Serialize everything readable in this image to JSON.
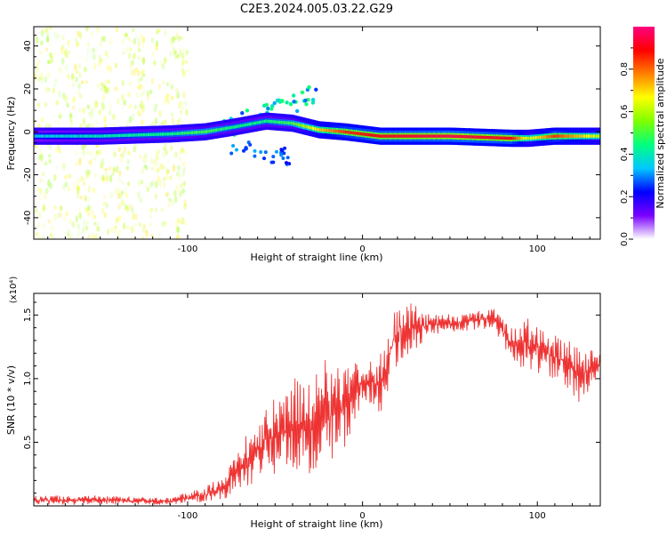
{
  "title": "C2E3.2024.005.03.22.G29",
  "chart_data": [
    {
      "type": "heatmap",
      "xlabel": "Height of straight line (km)",
      "ylabel": "Frequency (Hz)",
      "xlim": [
        -188,
        136
      ],
      "ylim": [
        -50,
        49
      ],
      "x_ticks": [
        -100,
        0,
        100
      ],
      "y_ticks": [
        -40,
        -20,
        0,
        20,
        40
      ],
      "colorbar": {
        "label": "Normalized spectral amplitude",
        "range": [
          0.0,
          1.0
        ],
        "ticks": [
          0.0,
          0.2,
          0.4,
          0.6,
          0.8
        ],
        "colors": [
          "#ffffff",
          "#7a00ff",
          "#0000ff",
          "#00c8ff",
          "#00ff80",
          "#80ff00",
          "#ffff00",
          "#ff8000",
          "#ff0000",
          "#ff0080"
        ]
      },
      "ridge": [
        {
          "height": -188,
          "frequency": -2,
          "amplitude": 0.35
        },
        {
          "height": -150,
          "frequency": -2,
          "amplitude": 0.4
        },
        {
          "height": -110,
          "frequency": -1,
          "amplitude": 0.45
        },
        {
          "height": -90,
          "frequency": 0,
          "amplitude": 0.5
        },
        {
          "height": -75,
          "frequency": 2,
          "amplitude": 0.45
        },
        {
          "height": -55,
          "frequency": 5,
          "amplitude": 0.45
        },
        {
          "height": -40,
          "frequency": 4,
          "amplitude": 0.5
        },
        {
          "height": -25,
          "frequency": 1,
          "amplitude": 0.7
        },
        {
          "height": -10,
          "frequency": 0,
          "amplitude": 0.85
        },
        {
          "height": 10,
          "frequency": -2,
          "amplitude": 0.9
        },
        {
          "height": 50,
          "frequency": -2,
          "amplitude": 0.95
        },
        {
          "height": 85,
          "frequency": -3,
          "amplitude": 0.9
        },
        {
          "height": 95,
          "frequency": -3,
          "amplitude": 0.6
        },
        {
          "height": 110,
          "frequency": -2,
          "amplitude": 0.85
        },
        {
          "height": 136,
          "frequency": -2,
          "amplitude": 0.6
        }
      ]
    },
    {
      "type": "line",
      "xlabel": "Height of straight line (km)",
      "ylabel": "SNR (10 * v/v)",
      "y_multiplier": "(x10⁴)",
      "xlim": [
        -188,
        136
      ],
      "ylim": [
        0.0,
        1.67
      ],
      "x_ticks": [
        -100,
        0,
        100
      ],
      "y_ticks": [
        0.5,
        1.0,
        1.5
      ],
      "color": "#ee3333",
      "envelope": [
        {
          "x": -188,
          "low": 0.01,
          "high": 0.08
        },
        {
          "x": -150,
          "low": 0.01,
          "high": 0.08
        },
        {
          "x": -110,
          "low": 0.01,
          "high": 0.06
        },
        {
          "x": -90,
          "low": 0.03,
          "high": 0.15
        },
        {
          "x": -80,
          "low": 0.05,
          "high": 0.25
        },
        {
          "x": -60,
          "low": 0.2,
          "high": 0.7
        },
        {
          "x": -40,
          "low": 0.3,
          "high": 1.0
        },
        {
          "x": -25,
          "low": 0.2,
          "high": 1.15
        },
        {
          "x": -10,
          "low": 0.4,
          "high": 1.15
        },
        {
          "x": 0,
          "low": 0.85,
          "high": 1.1
        },
        {
          "x": 10,
          "low": 0.7,
          "high": 1.2
        },
        {
          "x": 20,
          "low": 1.1,
          "high": 1.65
        },
        {
          "x": 40,
          "low": 1.35,
          "high": 1.5
        },
        {
          "x": 60,
          "low": 1.38,
          "high": 1.52
        },
        {
          "x": 75,
          "low": 1.4,
          "high": 1.55
        },
        {
          "x": 85,
          "low": 1.15,
          "high": 1.4
        },
        {
          "x": 95,
          "low": 1.05,
          "high": 1.5
        },
        {
          "x": 110,
          "low": 1.0,
          "high": 1.35
        },
        {
          "x": 125,
          "low": 0.8,
          "high": 1.25
        },
        {
          "x": 136,
          "low": 1.05,
          "high": 1.2
        }
      ]
    }
  ]
}
